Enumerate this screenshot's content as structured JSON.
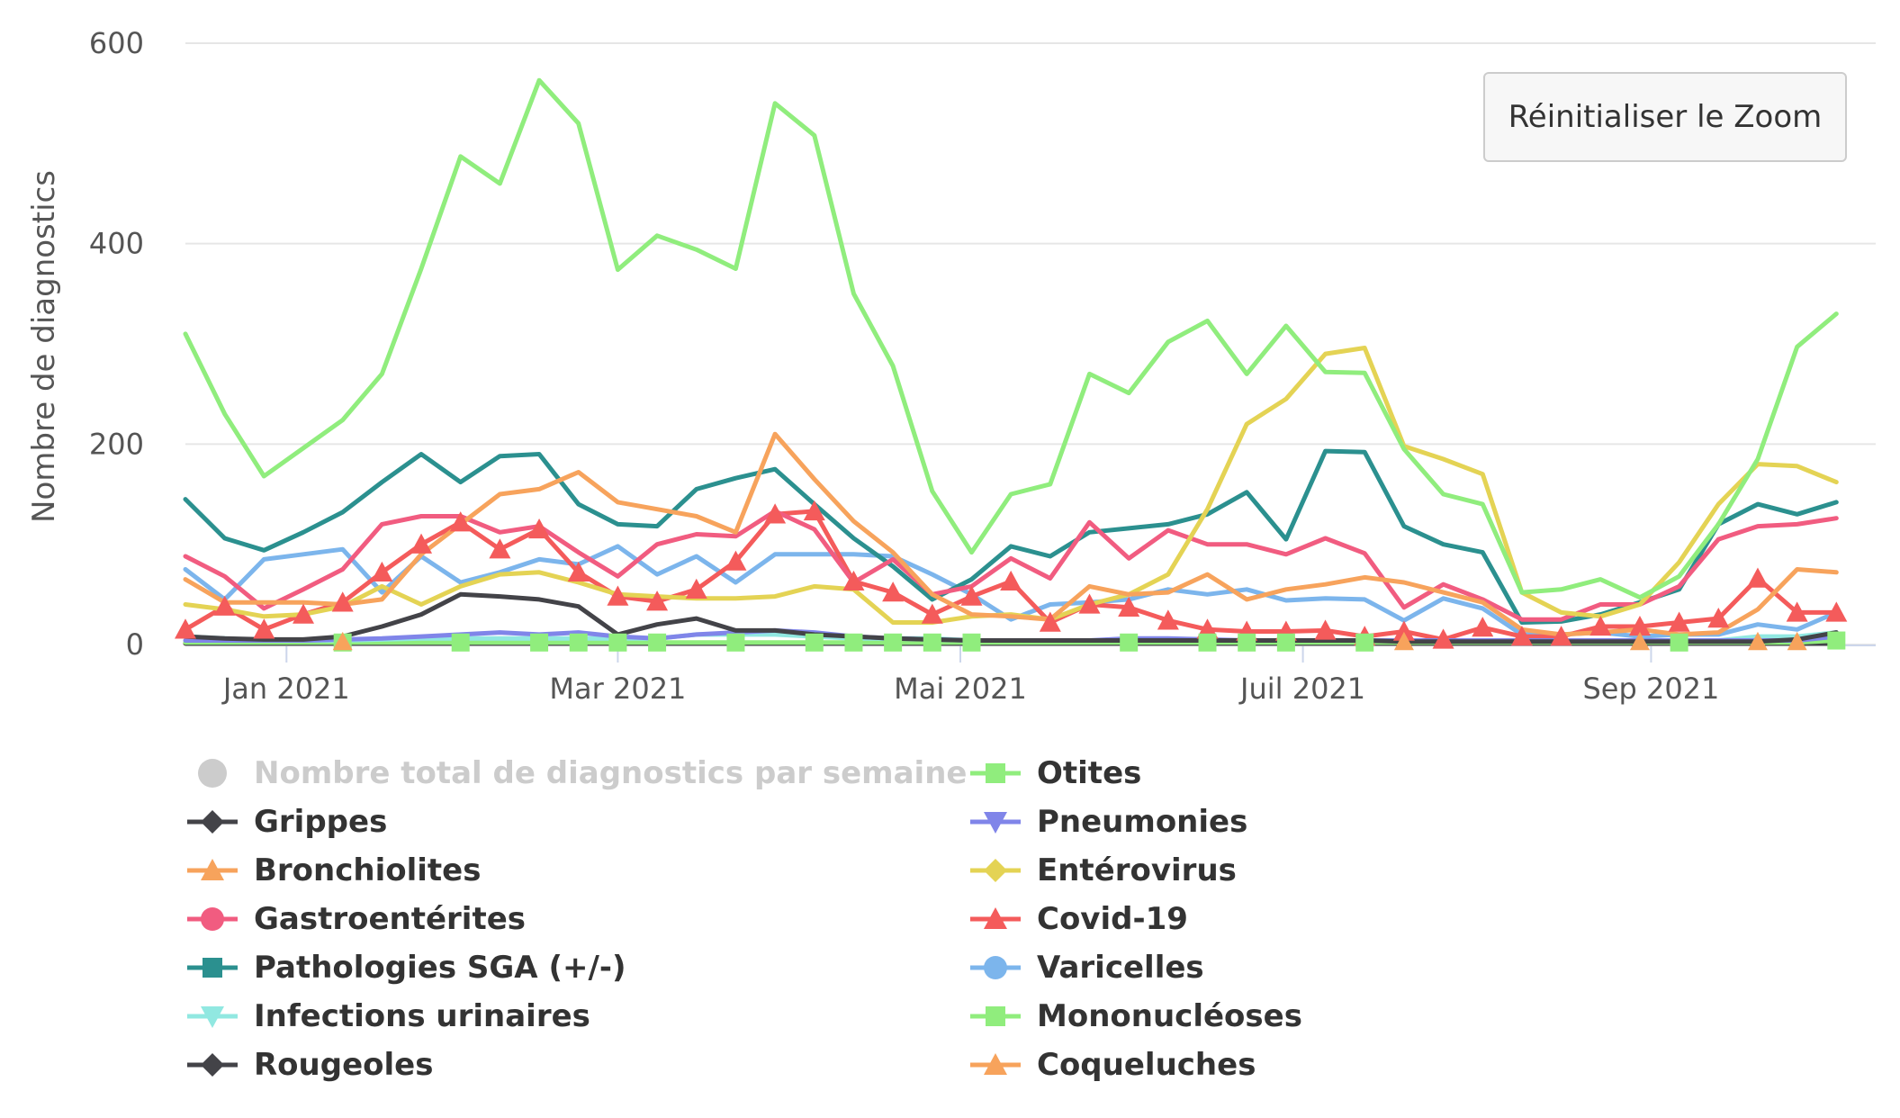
{
  "reset_button": {
    "label": "Réinitialiser le Zoom"
  },
  "chart_data": {
    "type": "line",
    "ylabel": "Nombre de diagnostics",
    "xlabel": "",
    "ylim": [
      0,
      600
    ],
    "yticks": [
      0,
      200,
      400,
      600
    ],
    "grid": true,
    "legend_placement": "bottom",
    "x_start": "2020-12-14",
    "x_step_days": 7,
    "xlim": [
      "2020-12-14",
      "2021-10-11"
    ],
    "xticks": [
      {
        "date": "2021-01-01",
        "label": "Jan 2021"
      },
      {
        "date": "2021-03-01",
        "label": "Mar 2021"
      },
      {
        "date": "2021-05-01",
        "label": "Mai 2021"
      },
      {
        "date": "2021-07-01",
        "label": "Juil 2021"
      },
      {
        "date": "2021-09-01",
        "label": "Sep 2021"
      }
    ],
    "series": [
      {
        "name": "Nombre total de diagnostics par semaine",
        "color": "#cccccc",
        "marker": "circle",
        "visible": false,
        "values": []
      },
      {
        "name": "Otites",
        "color": "#90ed7d",
        "marker": "square",
        "values": [
          310,
          230,
          168,
          196,
          224,
          270,
          375,
          487,
          460,
          563,
          520,
          374,
          408,
          394,
          375,
          540,
          508,
          350,
          278,
          153,
          92,
          150,
          160,
          270,
          251,
          302,
          323,
          270,
          318,
          272,
          271,
          195,
          150,
          140,
          52,
          55,
          65,
          47,
          68,
          120,
          185,
          297,
          330
        ]
      },
      {
        "name": "Grippes",
        "color": "#434348",
        "marker": "diamond",
        "values": [
          8,
          6,
          5,
          5,
          8,
          18,
          30,
          50,
          48,
          45,
          38,
          10,
          20,
          26,
          14,
          14,
          10,
          8,
          6,
          5,
          4,
          4,
          4,
          4,
          4,
          4,
          4,
          4,
          4,
          4,
          4,
          3,
          3,
          3,
          3,
          3,
          3,
          3,
          3,
          3,
          3,
          5,
          12
        ]
      },
      {
        "name": "Pneumonies",
        "color": "#8085e9",
        "marker": "triangle-down",
        "values": [
          4,
          4,
          4,
          4,
          5,
          6,
          8,
          10,
          12,
          10,
          12,
          8,
          6,
          10,
          12,
          14,
          12,
          8,
          6,
          5,
          4,
          4,
          4,
          4,
          6,
          6,
          5,
          4,
          4,
          4,
          4,
          4,
          4,
          4,
          4,
          4,
          4,
          4,
          4,
          4,
          4,
          4,
          8
        ]
      },
      {
        "name": "Bronchiolites",
        "color": "#f7a35c",
        "marker": "triangle",
        "values": [
          65,
          42,
          42,
          42,
          40,
          45,
          90,
          120,
          150,
          155,
          172,
          142,
          135,
          128,
          112,
          210,
          165,
          123,
          92,
          50,
          30,
          28,
          25,
          58,
          50,
          52,
          70,
          45,
          55,
          60,
          67,
          62,
          52,
          42,
          15,
          10,
          12,
          15,
          10,
          12,
          35,
          75,
          72
        ]
      },
      {
        "name": "Entérovirus",
        "color": "#e4d354",
        "marker": "diamond",
        "values": [
          40,
          35,
          28,
          30,
          38,
          58,
          40,
          58,
          70,
          72,
          62,
          50,
          48,
          46,
          46,
          48,
          58,
          55,
          22,
          22,
          28,
          30,
          25,
          40,
          50,
          70,
          135,
          220,
          245,
          290,
          296,
          198,
          185,
          170,
          52,
          32,
          28,
          40,
          82,
          140,
          180,
          178,
          162
        ]
      },
      {
        "name": "Gastroentérites",
        "color": "#f45b5b",
        "marker": "circle",
        "color_alt": "#f15c80",
        "values": [
          88,
          68,
          36,
          55,
          75,
          120,
          128,
          128,
          112,
          118,
          92,
          68,
          100,
          110,
          108,
          133,
          115,
          62,
          85,
          50,
          58,
          86,
          66,
          122,
          86,
          114,
          100,
          100,
          90,
          106,
          91,
          37,
          60,
          45,
          25,
          25,
          40,
          40,
          58,
          105,
          118,
          120,
          126
        ]
      },
      {
        "name": "Covid-19",
        "color": "#f45b5b",
        "marker": "triangle",
        "values": [
          15,
          38,
          15,
          30,
          42,
          72,
          100,
          122,
          95,
          115,
          72,
          48,
          43,
          55,
          83,
          130,
          133,
          63,
          52,
          30,
          48,
          63,
          22,
          40,
          37,
          24,
          15,
          13,
          13,
          14,
          8,
          13,
          5,
          17,
          8,
          8,
          18,
          18,
          22,
          26,
          66,
          32,
          32
        ]
      },
      {
        "name": "Pathologies SGA (+/-)",
        "color": "#2b908f",
        "marker": "square",
        "values": [
          145,
          106,
          94,
          112,
          132,
          162,
          190,
          162,
          188,
          190,
          140,
          120,
          118,
          155,
          166,
          175,
          140,
          106,
          78,
          45,
          65,
          98,
          88,
          112,
          116,
          120,
          130,
          152,
          105,
          193,
          192,
          118,
          100,
          92,
          22,
          23,
          30,
          42,
          55,
          120,
          140,
          130,
          142
        ]
      },
      {
        "name": "Varicelles",
        "color": "#7cb5ec",
        "marker": "circle",
        "values": [
          75,
          45,
          85,
          90,
          95,
          52,
          88,
          62,
          72,
          85,
          80,
          98,
          70,
          88,
          62,
          90,
          90,
          90,
          88,
          70,
          50,
          25,
          40,
          42,
          45,
          55,
          50,
          55,
          44,
          46,
          45,
          24,
          46,
          36,
          10,
          10,
          12,
          8,
          10,
          10,
          20,
          15,
          32
        ]
      },
      {
        "name": "Infections urinaires",
        "color": "#91e8e1",
        "marker": "triangle-down",
        "values": [
          8,
          6,
          4,
          4,
          4,
          5,
          6,
          6,
          6,
          6,
          6,
          6,
          6,
          10,
          10,
          10,
          8,
          6,
          6,
          6,
          4,
          4,
          4,
          4,
          4,
          4,
          4,
          4,
          4,
          4,
          4,
          4,
          4,
          4,
          4,
          4,
          4,
          4,
          4,
          4,
          8,
          8,
          12
        ]
      },
      {
        "name": "Mononucléoses",
        "color": "#90ed7d",
        "marker": "square",
        "values": [
          2,
          2,
          2,
          2,
          2,
          2,
          2,
          2,
          2,
          2,
          2,
          2,
          2,
          2,
          2,
          2,
          2,
          2,
          2,
          2,
          2,
          2,
          2,
          2,
          2,
          2,
          2,
          2,
          2,
          2,
          2,
          2,
          2,
          2,
          2,
          2,
          2,
          2,
          2,
          2,
          2,
          2,
          4
        ]
      },
      {
        "name": "Rougeoles",
        "color": "#434348",
        "marker": "diamond",
        "values": [
          1,
          1,
          1,
          1,
          1,
          1,
          1,
          1,
          1,
          1,
          1,
          1,
          1,
          1,
          1,
          1,
          1,
          1,
          1,
          1,
          1,
          1,
          1,
          1,
          1,
          1,
          1,
          1,
          1,
          1,
          1,
          1,
          1,
          1,
          1,
          1,
          1,
          1,
          1,
          1,
          1,
          1,
          1
        ]
      },
      {
        "name": "Coqueluches",
        "color": "#f7a35c",
        "marker": "triangle",
        "values": [
          1,
          1,
          1,
          1,
          1,
          1,
          1,
          1,
          1,
          1,
          1,
          1,
          1,
          1,
          1,
          1,
          1,
          1,
          1,
          1,
          1,
          1,
          1,
          1,
          1,
          1,
          1,
          1,
          1,
          1,
          1,
          1,
          1,
          1,
          1,
          1,
          1,
          1,
          1,
          1,
          1,
          1,
          1
        ]
      }
    ]
  }
}
